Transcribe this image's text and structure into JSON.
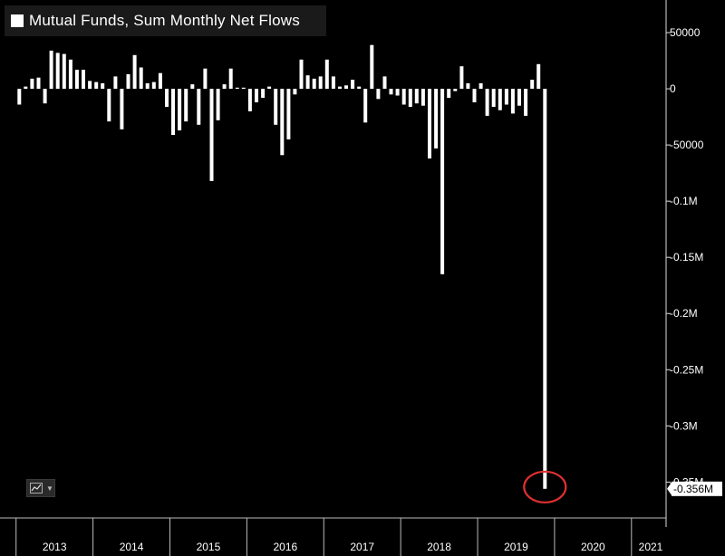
{
  "chart_data": {
    "type": "bar",
    "title": "Mutual Funds, Sum Monthly Net Flows",
    "xlabel": "",
    "ylabel": "",
    "ylim": [
      -390000,
      75000
    ],
    "x_range": [
      2012.85,
      2021.45
    ],
    "grid": false,
    "legend": "top-left",
    "y_ticks": [
      {
        "value": 50000,
        "label": "50000"
      },
      {
        "value": 0,
        "label": "0"
      },
      {
        "value": -50000,
        "label": "-50000"
      },
      {
        "value": -100000,
        "label": "-0.1M"
      },
      {
        "value": -150000,
        "label": "-0.15M"
      },
      {
        "value": -200000,
        "label": "-0.2M"
      },
      {
        "value": -250000,
        "label": "-0.25M"
      },
      {
        "value": -300000,
        "label": "-0.3M"
      },
      {
        "value": -350000,
        "label": "-0.35M"
      }
    ],
    "x_ticks": [
      "2013",
      "2014",
      "2015",
      "2016",
      "2017",
      "2018",
      "2019",
      "2020",
      "2021"
    ],
    "last_value_label": "-0.356M",
    "highlight_color": "#e03030",
    "bar_color": "#ffffff",
    "series": [
      {
        "values": [
          -14000,
          2000,
          9000,
          10000,
          -13000,
          34000,
          32000,
          31000,
          26000,
          17000,
          17000,
          7000,
          6000,
          5000,
          -29000,
          11000,
          -36000,
          13000,
          30000,
          19000,
          5000,
          6000,
          14000,
          -16000,
          -41000,
          -37000,
          -29000,
          4000,
          -32000,
          18000,
          -82000,
          -28000,
          4000,
          18000,
          1000,
          1000,
          -20000,
          -12000,
          -8000,
          2000,
          -32000,
          -59000,
          -45000,
          -5000,
          26000,
          12000,
          9000,
          11000,
          26000,
          11000,
          2000,
          3000,
          8000,
          2000,
          -30000,
          39000,
          -9000,
          11000,
          -5000,
          -6000,
          -14000,
          -16000,
          -13000,
          -15000,
          -62000,
          -53000,
          -165000,
          -8000,
          -2000,
          20000,
          5000,
          -12000,
          5000,
          -24000,
          -16000,
          -19000,
          -14000,
          -22000,
          -15000,
          -24000,
          8000,
          22000,
          -356000
        ]
      }
    ]
  },
  "legend_label": "Mutual Funds, Sum Monthly Net Flows"
}
